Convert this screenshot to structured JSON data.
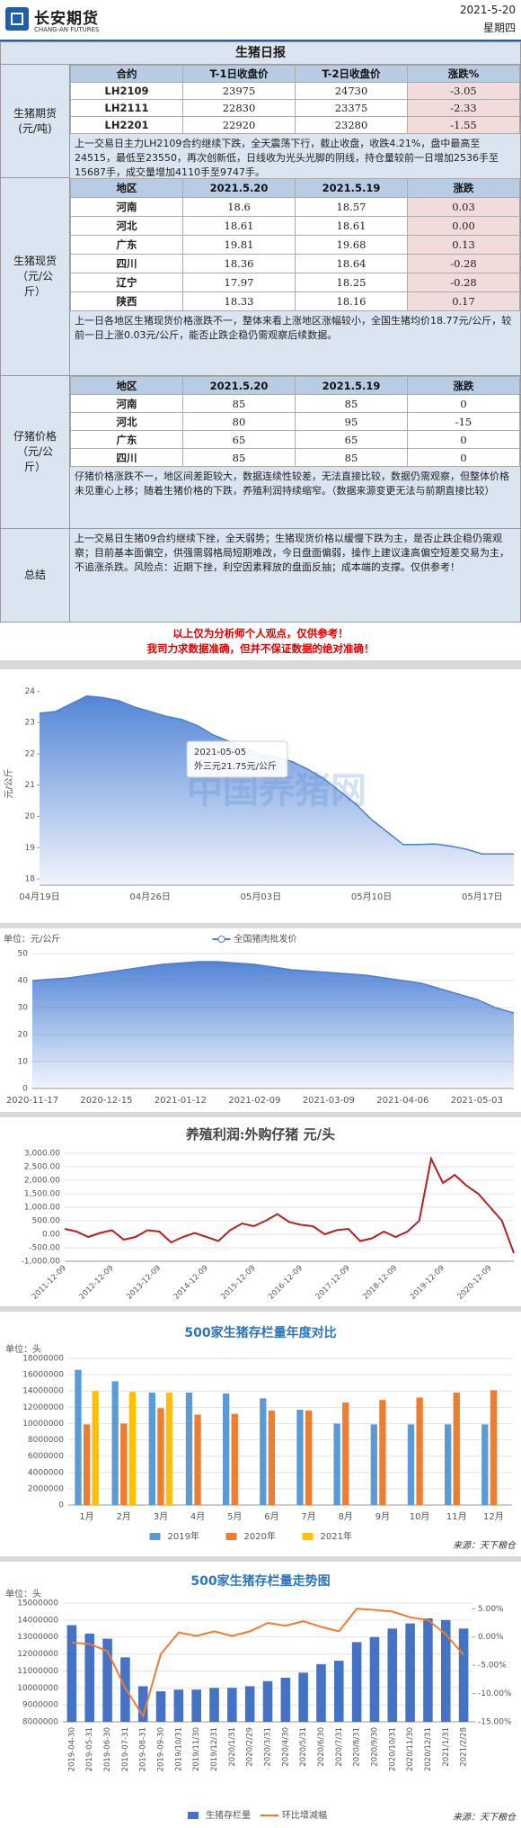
{
  "header": {
    "company": "长安期货",
    "company_en": "CHANG-AN FUTURES",
    "date": "2021-5-20",
    "weekday": "星期四"
  },
  "title": "生猪日报",
  "sections": [
    {
      "label": "生猪期货\n(元/吨)",
      "highlight_color": "#f2dcdb",
      "table": {
        "columns": [
          "合约",
          "T-1日收盘价",
          "T-2日收盘价",
          "涨跌%"
        ],
        "rows": [
          [
            "LH2109",
            "23975",
            "24730",
            "-3.05"
          ],
          [
            "LH2111",
            "22830",
            "23375",
            "-2.33"
          ],
          [
            "LH2201",
            "22920",
            "23280",
            "-1.55"
          ]
        ]
      },
      "text": "上一交易日主力LH2109合约继续下跌，全天震荡下行，截止收盘，收跌4.21%，盘中最高至24515，最低至23550，再次创新低，日线收为光头光脚的阴线，持仓量较前一日增加2536手至15687手，成交量增加4110手至9747手。"
    },
    {
      "label": "生猪现货\n（元/公\n斤）",
      "highlight_color": "#f2dcdb",
      "table": {
        "columns": [
          "地区",
          "2021.5.20",
          "2021.5.19",
          "涨跌"
        ],
        "rows": [
          [
            "河南",
            "18.6",
            "18.57",
            "0.03"
          ],
          [
            "河北",
            "18.61",
            "18.61",
            "0.00"
          ],
          [
            "广东",
            "19.81",
            "19.68",
            "0.13"
          ],
          [
            "四川",
            "18.36",
            "18.64",
            "-0.28"
          ],
          [
            "辽宁",
            "17.97",
            "18.25",
            "-0.28"
          ],
          [
            "陕西",
            "18.33",
            "18.16",
            "0.17"
          ]
        ]
      },
      "text": "上一日各地区生猪现货价格涨跌不一，整体来看上涨地区涨幅较小，全国生猪均价18.77元/公斤，较前一日上涨0.03元/公斤，能否止跌企稳仍需观察后续数据。"
    },
    {
      "label": "仔猪价格\n（元/公\n斤）",
      "table": {
        "columns": [
          "地区",
          "2021.5.20",
          "2021.5.19",
          "涨跌"
        ],
        "rows": [
          [
            "河南",
            "85",
            "85",
            "0"
          ],
          [
            "河北",
            "80",
            "95",
            "-15"
          ],
          [
            "广东",
            "65",
            "65",
            "0"
          ],
          [
            "四川",
            "85",
            "85",
            "0"
          ]
        ]
      },
      "text": "仔猪价格涨跌不一，地区间差距较大，数据连续性较差，无法直接比较，数据仍需观察，但整体价格未见重心上移；随着生猪价格的下跌，养殖利润持续缩窄。（数据来源变更无法与前期直接比较）"
    }
  ],
  "summary": {
    "label": "总结",
    "text": "上一交易日生猪09合约继续下挫，全天弱势；生猪现货价格以缓慢下跌为主，是否止跌企稳仍需观察；目前基本面偏空，供强需弱格局短期难改，今日盘面偏弱，操作上建议逢高偏空短差交易为主，不追涨杀跌。风险点：近期下挫，利空因素释放的盘面反抽；成本端的支撑。仅供参考！"
  },
  "notes": [
    "以上仅为分析师个人观点，仅供参考！",
    "我司力求数据准确，但并不保证数据的绝对准确！"
  ],
  "charts": [
    {
      "type": "area",
      "y_label": "元/公斤",
      "watermark": "中国养猪网",
      "annotation": {
        "title": "2021-05-05",
        "text": "外三元21.75元/公斤"
      },
      "categories": [
        "04月19日",
        null,
        null,
        null,
        null,
        null,
        null,
        "04月26日",
        null,
        null,
        null,
        null,
        null,
        null,
        "05月03日",
        null,
        null,
        null,
        null,
        null,
        null,
        "05月10日",
        null,
        null,
        null,
        null,
        null,
        null,
        "05月17日",
        null,
        null
      ],
      "series": [
        {
          "color": "#4a7fd4",
          "values": [
            23.3,
            23.35,
            23.6,
            23.85,
            23.8,
            23.7,
            23.5,
            23.35,
            23.2,
            23.1,
            22.9,
            22.6,
            22.4,
            22.2,
            22.0,
            21.9,
            21.75,
            21.5,
            21.2,
            20.8,
            20.4,
            19.9,
            19.5,
            19.1,
            19.1,
            19.12,
            19.05,
            18.95,
            18.8,
            18.8,
            18.8
          ]
        }
      ],
      "ylim": [
        17.8,
        24.3
      ],
      "yticks": [
        18,
        19,
        20,
        21,
        22,
        23,
        24
      ],
      "grid": false
    },
    {
      "type": "area",
      "unit": "单位：元/公斤",
      "legend": "top",
      "categories": [
        "2020-11-17",
        null,
        null,
        null,
        "2020-12-15",
        null,
        null,
        null,
        "2021-01-12",
        null,
        null,
        null,
        "2021-02-09",
        null,
        null,
        null,
        "2021-03-09",
        null,
        null,
        null,
        "2021-04-06",
        null,
        null,
        null,
        "2021-05-03",
        null,
        null
      ],
      "series": [
        {
          "name": "全国猪肉批发价",
          "color": "#4a7fd4",
          "values": [
            40,
            40.5,
            41,
            42,
            43,
            44,
            45,
            46,
            46.5,
            47,
            47,
            46.5,
            46,
            45,
            44,
            43.5,
            43,
            42.5,
            42,
            41,
            40,
            39,
            37,
            35,
            33,
            30,
            28
          ]
        }
      ],
      "ylim": [
        0,
        50
      ],
      "yticks": [
        0,
        10,
        20,
        30,
        40,
        50
      ],
      "grid": true
    },
    {
      "type": "line",
      "title": "养殖利润:外购仔猪 元/头",
      "categories": [
        "2011-12-09",
        null,
        null,
        null,
        "2012-12-09",
        null,
        null,
        null,
        "2013-12-09",
        null,
        null,
        null,
        "2014-12-09",
        null,
        null,
        null,
        "2015-12-09",
        null,
        null,
        null,
        "2016-12-09",
        null,
        null,
        null,
        "2017-12-09",
        null,
        null,
        null,
        "2018-12-09",
        null,
        null,
        null,
        "2019-12-09",
        null,
        null,
        null,
        "2020-12-09",
        null,
        null
      ],
      "series": [
        {
          "color": "#b22222",
          "values": [
            200,
            100,
            -100,
            50,
            150,
            -200,
            -100,
            150,
            100,
            -300,
            -100,
            50,
            -100,
            -250,
            150,
            400,
            300,
            500,
            750,
            450,
            350,
            300,
            0,
            150,
            200,
            -250,
            -150,
            100,
            -100,
            100,
            500,
            2800,
            1900,
            2200,
            1800,
            1500,
            1000,
            500,
            -700
          ]
        }
      ],
      "ylim": [
        -1000,
        3000
      ],
      "yticks": [
        {
          "value": -1000,
          "label": "-1,000.00"
        },
        {
          "value": -500,
          "label": "-500.00"
        },
        {
          "value": 0,
          "label": "0.00"
        },
        {
          "value": 500,
          "label": "500.00"
        },
        {
          "value": 1000,
          "label": "1,000.00"
        },
        {
          "value": 1500,
          "label": "1,500.00"
        },
        {
          "value": 2000,
          "label": "2,000.00"
        },
        {
          "value": 2500,
          "label": "2,500.00"
        },
        {
          "value": 3000,
          "label": "3,000.00"
        }
      ],
      "grid": true
    },
    {
      "type": "bar",
      "title": "500家生猪存栏量年度对比",
      "unit": "单位：头",
      "source": "来源：天下粮仓",
      "legend": "bottom",
      "categories": [
        "1月",
        "2月",
        "3月",
        "4月",
        "5月",
        "6月",
        "7月",
        "8月",
        "9月",
        "10月",
        "11月",
        "12月"
      ],
      "series": [
        {
          "name": "2019年",
          "color": "#5b9bd5",
          "values": [
            16600000,
            15200000,
            13800000,
            13800000,
            13700000,
            13100000,
            11700000,
            10000000,
            9900000,
            9900000,
            9900000,
            9900000
          ]
        },
        {
          "name": "2020年",
          "color": "#ed7d31",
          "values": [
            9900000,
            10000000,
            11900000,
            11100000,
            11200000,
            11600000,
            11600000,
            12600000,
            12900000,
            13200000,
            13800000,
            14100000
          ]
        },
        {
          "name": "2021年",
          "color": "#ffc000",
          "values": [
            14000000,
            13900000,
            13800000,
            null,
            null,
            null,
            null,
            null,
            null,
            null,
            null,
            null
          ]
        }
      ],
      "ylim": [
        0,
        18000000
      ],
      "yticks": [
        0,
        2000000,
        4000000,
        6000000,
        8000000,
        10000000,
        12000000,
        14000000,
        16000000,
        18000000
      ],
      "grid": true
    },
    {
      "type": "combo",
      "title": "500家生猪存栏量走势图",
      "unit": "单位：头",
      "source": "来源：天下粮仓",
      "legend": "bottom",
      "categories": [
        "2019-04-30",
        "2019-05-31",
        "2019-06-30",
        "2019-07-31",
        "2019-08-31",
        "2019-09-30",
        "2019/10/31",
        "2019/11/30",
        "2019/12/31",
        "2020/1/31",
        "2020/2/29",
        "2020/3/31",
        "2020/4/30",
        "2020/5/31",
        "2020/6/30",
        "2020/7/31",
        "2020/8/31",
        "2020/9/30",
        "2020/10/31",
        "2020/11/30",
        "2020/12/31",
        "2021/1/31",
        "2021/2/28"
      ],
      "series": [
        {
          "name": "生猪存栏量",
          "color": "#4472c4",
          "values": [
            13700000,
            13200000,
            12900000,
            11800000,
            10100000,
            9800000,
            9900000,
            9900000,
            10000000,
            10000000,
            10100000,
            10400000,
            10600000,
            10900000,
            11400000,
            11600000,
            12700000,
            13000000,
            13500000,
            13800000,
            14100000,
            14000000,
            13500000
          ]
        },
        {
          "name": "环比增减幅",
          "color": "#ed7d31",
          "axis": "y2",
          "values": [
            -1.0,
            -1.2,
            -2.5,
            -9.0,
            -14.0,
            -3.0,
            0.8,
            0.2,
            1.0,
            0.2,
            1.0,
            2.5,
            2.0,
            2.8,
            1.8,
            1.0,
            5.0,
            4.8,
            4.5,
            3.5,
            3.0,
            0.5,
            -3.2
          ]
        }
      ],
      "ylim": [
        8000000,
        15000000
      ],
      "yticks": [
        8000000,
        9000000,
        10000000,
        11000000,
        12000000,
        13000000,
        14000000,
        15000000
      ],
      "y2lim": [
        -15,
        6
      ],
      "y2ticks": [
        {
          "value": -15,
          "label": "-15.00%"
        },
        {
          "value": -10,
          "label": "-10.00%"
        },
        {
          "value": -5,
          "label": "-5.00%"
        },
        {
          "value": 0,
          "label": "0.00%"
        },
        {
          "value": 5,
          "label": "5.00%"
        }
      ],
      "grid": true
    }
  ]
}
